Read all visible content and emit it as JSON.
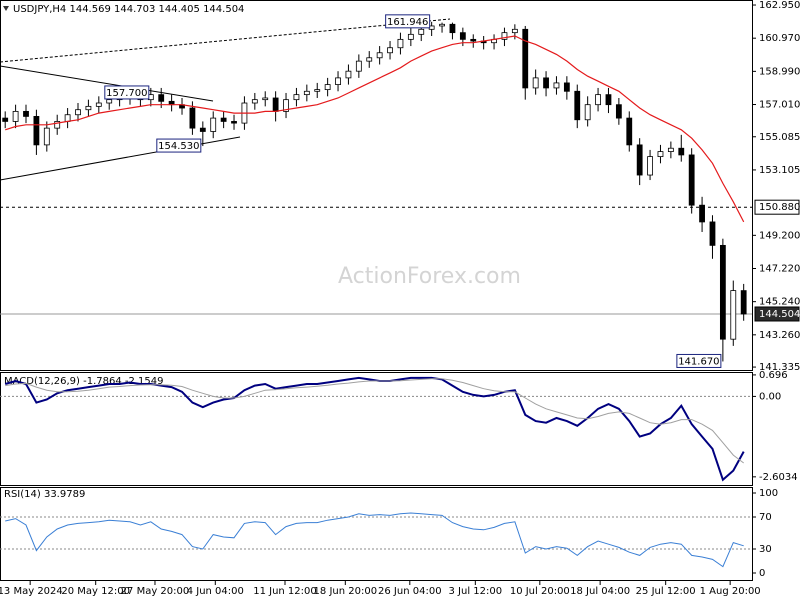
{
  "chart_data": [
    {
      "type": "candlestick",
      "title": "USDJPY,H4  144.569 144.703 144.405 144.504",
      "watermark": "ActionForex.com",
      "color": "#000000",
      "open": [
        156.2,
        156.0,
        156.6,
        156.3,
        154.6,
        155.6,
        156.0,
        156.4,
        156.7,
        156.9,
        157.1,
        157.3,
        157.4,
        157.5,
        157.3,
        157.6,
        157.2,
        157.0,
        156.8,
        155.6,
        155.4,
        156.2,
        156.0,
        155.9,
        157.1,
        157.3,
        157.4,
        156.6,
        157.3,
        157.6,
        157.8,
        157.9,
        158.2,
        158.6,
        159.0,
        159.6,
        159.8,
        160.1,
        160.4,
        160.9,
        161.2,
        161.5,
        161.7,
        161.8,
        161.3,
        160.9,
        160.8,
        160.7,
        160.9,
        161.3,
        161.5,
        158.0,
        158.6,
        158.0,
        158.3,
        157.8,
        156.1,
        157.0,
        157.6,
        157.0,
        156.2,
        154.6,
        152.8,
        153.9,
        154.2,
        154.4,
        154.0,
        151.0,
        150.0,
        148.6,
        143.0,
        145.9
      ],
      "high": [
        156.6,
        157.0,
        157.0,
        156.7,
        156.0,
        156.4,
        156.8,
        157.1,
        157.3,
        157.5,
        157.7,
        157.8,
        157.9,
        157.9,
        158.0,
        158.0,
        157.6,
        157.4,
        157.2,
        156.0,
        156.6,
        156.6,
        156.4,
        157.5,
        157.7,
        157.8,
        157.8,
        157.7,
        158.0,
        158.2,
        158.3,
        158.6,
        159.0,
        159.4,
        160.0,
        160.2,
        160.5,
        160.8,
        161.3,
        161.6,
        161.9,
        161.946,
        161.9,
        161.9,
        161.6,
        161.2,
        161.1,
        161.2,
        161.6,
        161.8,
        161.7,
        159.1,
        159.0,
        158.7,
        158.7,
        158.2,
        157.5,
        158.0,
        158.0,
        157.4,
        156.6,
        155.0,
        154.3,
        154.6,
        154.8,
        155.2,
        154.4,
        151.5,
        150.4,
        149.0,
        146.5,
        146.3
      ],
      "low": [
        155.6,
        155.6,
        155.9,
        154.0,
        154.2,
        155.2,
        155.6,
        156.0,
        156.3,
        156.5,
        156.7,
        156.9,
        157.0,
        156.9,
        156.9,
        156.8,
        156.6,
        156.4,
        155.2,
        154.53,
        155.0,
        155.6,
        155.5,
        155.5,
        156.7,
        156.9,
        156.0,
        156.2,
        156.9,
        157.2,
        157.4,
        157.5,
        157.8,
        158.2,
        158.6,
        159.2,
        159.4,
        159.7,
        160.0,
        160.5,
        160.8,
        161.1,
        161.3,
        160.9,
        160.5,
        160.4,
        160.3,
        160.3,
        160.5,
        160.9,
        157.3,
        157.6,
        157.5,
        157.6,
        157.3,
        155.6,
        155.7,
        156.6,
        156.5,
        155.8,
        154.2,
        152.2,
        152.5,
        153.5,
        153.8,
        153.6,
        150.5,
        149.4,
        147.8,
        141.67,
        142.6,
        144.1
      ],
      "close": [
        156.0,
        156.6,
        156.3,
        154.6,
        155.6,
        156.0,
        156.4,
        156.7,
        156.9,
        157.1,
        157.3,
        157.4,
        157.5,
        157.3,
        157.6,
        157.2,
        157.0,
        156.8,
        155.6,
        155.4,
        156.2,
        156.0,
        155.9,
        157.1,
        157.3,
        157.4,
        156.6,
        157.3,
        157.6,
        157.8,
        157.9,
        158.2,
        158.6,
        159.0,
        159.6,
        159.8,
        160.1,
        160.4,
        160.9,
        161.2,
        161.5,
        161.7,
        161.8,
        161.3,
        160.9,
        160.8,
        160.7,
        160.9,
        161.3,
        161.5,
        158.0,
        158.6,
        158.0,
        158.3,
        157.8,
        156.1,
        157.0,
        157.6,
        157.0,
        156.2,
        154.6,
        152.8,
        153.9,
        154.2,
        154.4,
        154.0,
        151.0,
        150.0,
        148.6,
        143.0,
        145.9,
        144.504
      ],
      "series": [
        {
          "color": "#e41a1c",
          "values": [
            155.5,
            155.7,
            155.8,
            155.8,
            155.8,
            155.9,
            156.0,
            156.1,
            156.3,
            156.5,
            156.6,
            156.7,
            156.8,
            156.9,
            157.0,
            157.0,
            157.0,
            157.0,
            156.9,
            156.8,
            156.7,
            156.6,
            156.5,
            156.5,
            156.5,
            156.6,
            156.6,
            156.7,
            156.8,
            156.9,
            157.0,
            157.2,
            157.4,
            157.7,
            158.0,
            158.3,
            158.6,
            158.9,
            159.2,
            159.6,
            159.9,
            160.2,
            160.4,
            160.6,
            160.7,
            160.7,
            160.8,
            160.9,
            161.0,
            161.1,
            160.8,
            160.6,
            160.3,
            160.0,
            159.6,
            159.1,
            158.7,
            158.4,
            158.1,
            157.8,
            157.3,
            156.8,
            156.4,
            156.1,
            155.8,
            155.5,
            155.0,
            154.3,
            153.5,
            152.3,
            151.2,
            150.0
          ]
        }
      ],
      "ylim": [
        141.16,
        163.25
      ],
      "yticks": [
        {
          "value": 162.95,
          "label": "162.950"
        },
        {
          "value": 160.97,
          "label": "160.970"
        },
        {
          "value": 158.99,
          "label": "158.990"
        },
        {
          "value": 157.01,
          "label": "157.010"
        },
        {
          "value": 155.085,
          "label": "155.085"
        },
        {
          "value": 153.105,
          "label": "153.105"
        },
        {
          "value": 149.2,
          "label": "149.200"
        },
        {
          "value": 147.22,
          "label": "147.220"
        },
        {
          "value": 145.24,
          "label": "145.240"
        },
        {
          "value": 143.26,
          "label": "143.260"
        },
        {
          "value": 141.335,
          "label": "141.335"
        }
      ],
      "levels": [
        {
          "value": 150.88,
          "label": "150.880",
          "style": "dashed"
        },
        {
          "value": 144.504,
          "label": "144.504",
          "style": "current"
        }
      ],
      "annotations": [
        {
          "value": 161.946,
          "label": "161.946",
          "x": 41
        },
        {
          "value": 157.7,
          "label": "157.700",
          "x": 14
        },
        {
          "value": 154.53,
          "label": "154.530",
          "x": 19
        },
        {
          "value": 141.67,
          "label": "141.670",
          "x": 69
        }
      ]
    },
    {
      "type": "line",
      "title": "MACD(12,26,9) -1.7864 -2.1549",
      "series": [
        {
          "color": "#000080",
          "values": [
            0.4,
            0.5,
            0.4,
            -0.2,
            -0.1,
            0.1,
            0.2,
            0.25,
            0.3,
            0.35,
            0.4,
            0.4,
            0.45,
            0.4,
            0.4,
            0.35,
            0.3,
            0.15,
            -0.2,
            -0.35,
            -0.2,
            -0.1,
            -0.05,
            0.2,
            0.35,
            0.4,
            0.25,
            0.3,
            0.35,
            0.4,
            0.4,
            0.45,
            0.5,
            0.55,
            0.6,
            0.55,
            0.5,
            0.5,
            0.55,
            0.6,
            0.6,
            0.6,
            0.55,
            0.35,
            0.15,
            0.05,
            0.0,
            0.05,
            0.15,
            0.2,
            -0.6,
            -0.8,
            -0.85,
            -0.7,
            -0.8,
            -0.95,
            -0.7,
            -0.4,
            -0.25,
            -0.4,
            -0.8,
            -1.3,
            -1.2,
            -0.9,
            -0.7,
            -0.3,
            -0.9,
            -1.3,
            -1.7,
            -2.7,
            -2.4,
            -1.7864
          ]
        },
        {
          "color": "#a0a0a0",
          "values": [
            0.35,
            0.4,
            0.42,
            0.3,
            0.2,
            0.15,
            0.15,
            0.17,
            0.2,
            0.25,
            0.3,
            0.32,
            0.35,
            0.37,
            0.38,
            0.38,
            0.36,
            0.32,
            0.2,
            0.1,
            0.0,
            -0.05,
            -0.05,
            0.0,
            0.1,
            0.2,
            0.22,
            0.25,
            0.28,
            0.3,
            0.33,
            0.36,
            0.4,
            0.43,
            0.47,
            0.5,
            0.5,
            0.5,
            0.51,
            0.53,
            0.55,
            0.57,
            0.57,
            0.52,
            0.45,
            0.35,
            0.25,
            0.18,
            0.15,
            0.15,
            -0.05,
            -0.25,
            -0.4,
            -0.5,
            -0.6,
            -0.7,
            -0.72,
            -0.65,
            -0.55,
            -0.5,
            -0.55,
            -0.7,
            -0.85,
            -0.9,
            -0.85,
            -0.75,
            -0.75,
            -0.9,
            -1.1,
            -1.5,
            -1.9,
            -2.1549
          ]
        }
      ],
      "ylim": [
        -2.9,
        0.79
      ],
      "yticks": [
        0.696,
        {
          "value": 0,
          "label": "0.00"
        },
        -2.6034
      ],
      "levels": [
        0
      ]
    },
    {
      "type": "line",
      "title": "RSI(14) 33.9789",
      "series": [
        {
          "color": "#3a7fd5",
          "values": [
            65,
            68,
            60,
            28,
            45,
            55,
            60,
            62,
            63,
            64,
            66,
            65,
            64,
            60,
            64,
            55,
            52,
            48,
            33,
            30,
            48,
            45,
            44,
            62,
            64,
            63,
            48,
            58,
            62,
            63,
            63,
            66,
            68,
            70,
            74,
            72,
            73,
            72,
            74,
            75,
            74,
            73,
            72,
            63,
            58,
            55,
            54,
            57,
            62,
            64,
            25,
            33,
            30,
            33,
            31,
            22,
            33,
            40,
            36,
            32,
            26,
            22,
            32,
            36,
            38,
            36,
            22,
            20,
            17,
            8,
            38,
            33.9789
          ]
        }
      ],
      "ylim": [
        -8.75,
        107.5
      ],
      "yticks": [
        100,
        70,
        30,
        0
      ],
      "levels": [
        70,
        30
      ],
      "xlim": [
        -0.5,
        71.8
      ],
      "xticks": [
        {
          "value": 2.4,
          "label": "13 May 2024"
        },
        {
          "value": 8.7,
          "label": "20 May 12:00"
        },
        {
          "value": 14.4,
          "label": "27 May 20:00"
        },
        {
          "value": 20.2,
          "label": "4 Jun 04:00"
        },
        {
          "value": 26.9,
          "label": "11 Jun 12:00"
        },
        {
          "value": 32.7,
          "label": "18 Jun 20:00"
        },
        {
          "value": 38.9,
          "label": "26 Jun 04:00"
        },
        {
          "value": 45.2,
          "label": "3 Jul 12:00"
        },
        {
          "value": 51.4,
          "label": "10 Jul 20:00"
        },
        {
          "value": 57.2,
          "label": "18 Jul 04:00"
        },
        {
          "value": 63.5,
          "label": "25 Jul 12:00"
        },
        {
          "value": 69.7,
          "label": "1 Aug 20:00"
        }
      ]
    }
  ]
}
